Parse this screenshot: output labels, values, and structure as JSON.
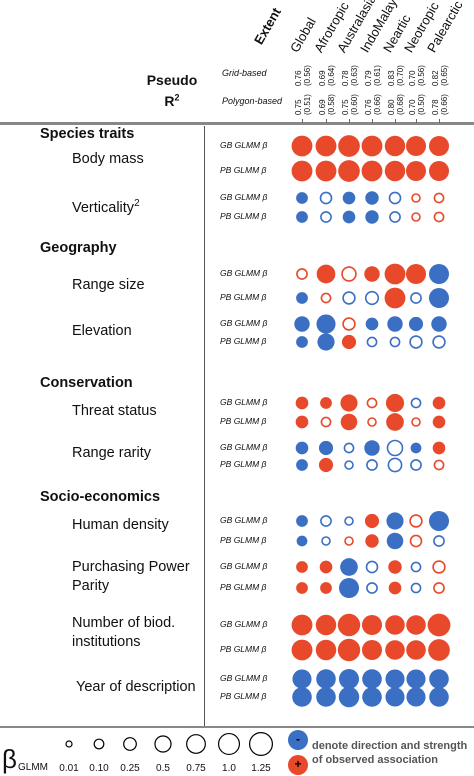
{
  "header": {
    "extent_label": "Extent",
    "regions": [
      "Global",
      "Afrotropic",
      "Australasia",
      "IndoMalay",
      "Neartic",
      "Neotropic",
      "Palearctic"
    ],
    "pseudo_label": "Pseudo",
    "r2_label": "R",
    "r2_sup": "2",
    "grid_label": "Grid-based",
    "polygon_label": "Polygon-based",
    "grid_r2": [
      [
        "0.76",
        "(0.56)"
      ],
      [
        "0.69",
        "(0.64)"
      ],
      [
        "0.78",
        "(0.63)"
      ],
      [
        "0.79",
        "(0.61)"
      ],
      [
        "0.83",
        "(0.70)"
      ],
      [
        "0.70",
        "(0.56)"
      ],
      [
        "0.82",
        "(0.65)"
      ]
    ],
    "polygon_r2": [
      [
        "0.75",
        "(0.51)"
      ],
      [
        "0.69",
        "(0.58)"
      ],
      [
        "0.75",
        "(0.60)"
      ],
      [
        "0.76",
        "(0.66)"
      ],
      [
        "0.80",
        "(0.68)"
      ],
      [
        "0.70",
        "(0.50)"
      ],
      [
        "0.78",
        "(0.66)"
      ]
    ]
  },
  "row_labels": {
    "gb": "GB GLMM β",
    "pb": "PB GLMM β"
  },
  "sections": [
    {
      "title": "Species traits",
      "variables": [
        {
          "name": "Body mass",
          "sup": ""
        },
        {
          "name": "Verticality",
          "sup": "2"
        }
      ]
    },
    {
      "title": "Geography",
      "variables": [
        {
          "name": "Range size",
          "sup": ""
        },
        {
          "name": "Elevation",
          "sup": ""
        }
      ]
    },
    {
      "title": "Conservation",
      "variables": [
        {
          "name": "Threat status",
          "sup": ""
        },
        {
          "name": "Range rarity",
          "sup": ""
        }
      ]
    },
    {
      "title": "Socio-economics",
      "variables": [
        {
          "name": "Human density",
          "sup": ""
        },
        {
          "name": "Purchasing Power Parity",
          "sup": ""
        },
        {
          "name": "Number of biod. institutions",
          "sup": ""
        },
        {
          "name": "Year of description",
          "sup": ""
        }
      ]
    }
  ],
  "colors": {
    "negative": "#3a6fc4",
    "positive": "#e8492a"
  },
  "legend": {
    "beta_symbol": "β",
    "beta_sub": "GLMM",
    "values": [
      "0.01",
      "0.10",
      "0.25",
      "0.5",
      "0.75",
      "1.0",
      "1.25"
    ],
    "minus": "-",
    "plus": "+",
    "description": "denote direction and strength of observed association"
  },
  "chart_data": {
    "type": "bubble-matrix",
    "columns": [
      "Global",
      "Afrotropic",
      "Australasia",
      "IndoMalay",
      "Neartic",
      "Neotropic",
      "Palearctic"
    ],
    "encoding": "size = |beta GLMM|; fill = positive (red) / negative (blue); filled = significant, hollow = non-significant",
    "rows": [
      {
        "variable": "Body mass",
        "model": "GB",
        "beta": [
          1.0,
          1.0,
          1.1,
          1.0,
          0.95,
          0.9,
          0.9
        ],
        "filled": [
          true,
          true,
          true,
          true,
          true,
          true,
          true
        ]
      },
      {
        "variable": "Body mass",
        "model": "PB",
        "beta": [
          1.0,
          1.0,
          1.1,
          1.0,
          0.95,
          0.9,
          0.9
        ],
        "filled": [
          true,
          true,
          true,
          true,
          true,
          true,
          true
        ]
      },
      {
        "variable": "Verticality",
        "model": "GB",
        "beta": [
          -0.2,
          -0.25,
          -0.25,
          -0.3,
          -0.25,
          0.1,
          0.15
        ],
        "filled": [
          true,
          false,
          true,
          true,
          false,
          false,
          false
        ]
      },
      {
        "variable": "Verticality",
        "model": "PB",
        "beta": [
          -0.2,
          -0.2,
          -0.25,
          -0.3,
          -0.2,
          0.1,
          0.15
        ],
        "filled": [
          true,
          false,
          true,
          true,
          false,
          false,
          false
        ]
      },
      {
        "variable": "Range size",
        "model": "GB",
        "beta": [
          0.2,
          0.75,
          0.45,
          0.45,
          1.0,
          0.9,
          -0.9
        ],
        "filled": [
          false,
          true,
          false,
          true,
          true,
          true,
          true
        ]
      },
      {
        "variable": "Range size",
        "model": "PB",
        "beta": [
          -0.2,
          0.15,
          -0.3,
          -0.35,
          1.0,
          -0.2,
          -0.9
        ],
        "filled": [
          true,
          false,
          false,
          false,
          true,
          false,
          true
        ]
      },
      {
        "variable": "Elevation",
        "model": "GB",
        "beta": [
          -0.45,
          -0.8,
          0.3,
          -0.25,
          -0.45,
          -0.35,
          -0.45
        ],
        "filled": [
          true,
          true,
          false,
          true,
          true,
          true,
          true
        ]
      },
      {
        "variable": "Elevation",
        "model": "PB",
        "beta": [
          -0.2,
          -0.6,
          0.35,
          -0.15,
          -0.15,
          -0.3,
          -0.3
        ],
        "filled": [
          true,
          true,
          true,
          false,
          false,
          false,
          false
        ]
      },
      {
        "variable": "Threat status",
        "model": "GB",
        "beta": [
          0.25,
          0.2,
          0.6,
          0.15,
          0.7,
          -0.15,
          0.25
        ],
        "filled": [
          true,
          true,
          true,
          false,
          true,
          false,
          true
        ]
      },
      {
        "variable": "Threat status",
        "model": "PB",
        "beta": [
          0.25,
          0.15,
          0.55,
          0.1,
          0.65,
          0.1,
          0.25
        ],
        "filled": [
          true,
          false,
          true,
          false,
          true,
          false,
          true
        ]
      },
      {
        "variable": "Range rarity",
        "model": "GB",
        "beta": [
          -0.25,
          -0.35,
          -0.15,
          -0.45,
          -0.55,
          -0.15,
          0.25
        ],
        "filled": [
          true,
          true,
          false,
          true,
          false,
          true,
          true
        ]
      },
      {
        "variable": "Range rarity",
        "model": "PB",
        "beta": [
          -0.2,
          0.35,
          -0.1,
          -0.2,
          -0.4,
          -0.2,
          0.15
        ],
        "filled": [
          true,
          true,
          false,
          false,
          false,
          false,
          false
        ]
      },
      {
        "variable": "Human density",
        "model": "GB",
        "beta": [
          -0.2,
          -0.2,
          -0.1,
          0.35,
          -0.6,
          0.3,
          -0.9
        ],
        "filled": [
          true,
          false,
          false,
          true,
          true,
          false,
          true
        ]
      },
      {
        "variable": "Human density",
        "model": "PB",
        "beta": [
          -0.15,
          -0.1,
          0.1,
          0.3,
          -0.55,
          0.25,
          -0.2
        ],
        "filled": [
          true,
          false,
          false,
          true,
          true,
          false,
          false
        ]
      },
      {
        "variable": "Purchasing Power Parity",
        "model": "GB",
        "beta": [
          0.2,
          0.25,
          -0.65,
          -0.25,
          0.3,
          -0.15,
          0.3
        ],
        "filled": [
          true,
          true,
          true,
          false,
          true,
          false,
          false
        ]
      },
      {
        "variable": "Purchasing Power Parity",
        "model": "PB",
        "beta": [
          0.2,
          0.2,
          -0.9,
          -0.2,
          0.25,
          -0.15,
          0.2
        ],
        "filled": [
          true,
          true,
          true,
          false,
          true,
          false,
          false
        ]
      },
      {
        "variable": "Number of biod. institutions",
        "model": "GB",
        "beta": [
          1.0,
          0.95,
          1.2,
          0.9,
          0.85,
          0.85,
          1.25
        ],
        "filled": [
          true,
          true,
          true,
          true,
          true,
          true,
          true
        ]
      },
      {
        "variable": "Number of biod. institutions",
        "model": "PB",
        "beta": [
          1.0,
          0.95,
          1.2,
          0.9,
          0.85,
          0.85,
          1.1
        ],
        "filled": [
          true,
          true,
          true,
          true,
          true,
          true,
          true
        ]
      },
      {
        "variable": "Year of description",
        "model": "GB",
        "beta": [
          -0.8,
          -0.85,
          -0.9,
          -0.85,
          -0.8,
          -0.8,
          -0.85
        ],
        "filled": [
          true,
          true,
          true,
          true,
          true,
          true,
          true
        ]
      },
      {
        "variable": "Year of description",
        "model": "PB",
        "beta": [
          -0.85,
          -0.85,
          -0.95,
          -0.85,
          -0.8,
          -0.8,
          -0.85
        ],
        "filled": [
          true,
          true,
          true,
          true,
          true,
          true,
          true
        ]
      }
    ]
  }
}
